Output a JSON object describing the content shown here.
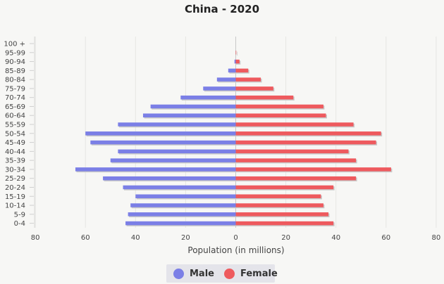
{
  "chart_data": {
    "type": "bar",
    "orientation": "horizontal",
    "title": "China - 2020",
    "xlabel": "Population (in millions)",
    "ylabel": "",
    "xlim": [
      -80,
      80
    ],
    "x_ticks": [
      80,
      60,
      40,
      20,
      0,
      20,
      40,
      60,
      80
    ],
    "grid": true,
    "legend_position": "bottom",
    "categories": [
      "100 +",
      "95-99",
      "90-94",
      "85-89",
      "80-84",
      "75-79",
      "70-74",
      "65-69",
      "60-64",
      "55-59",
      "50-54",
      "45-49",
      "40-44",
      "35-39",
      "30-34",
      "25-29",
      "20-24",
      "15-19",
      "10-14",
      "5-9",
      "0-4"
    ],
    "series": [
      {
        "name": "Male",
        "color": "#7b7fe6",
        "values": [
          0,
          0,
          0.5,
          3,
          7.5,
          13,
          22,
          34,
          37,
          47,
          60,
          58,
          47,
          50,
          64,
          53,
          45,
          40,
          42,
          43,
          44
        ]
      },
      {
        "name": "Female",
        "color": "#ee5a5e",
        "values": [
          0,
          0.2,
          1.5,
          5,
          10,
          15,
          23,
          35,
          36,
          47,
          58,
          56,
          45,
          48,
          62,
          48,
          39,
          34,
          35,
          37,
          39
        ]
      }
    ]
  },
  "legend": {
    "male_label": "Male",
    "female_label": "Female"
  }
}
